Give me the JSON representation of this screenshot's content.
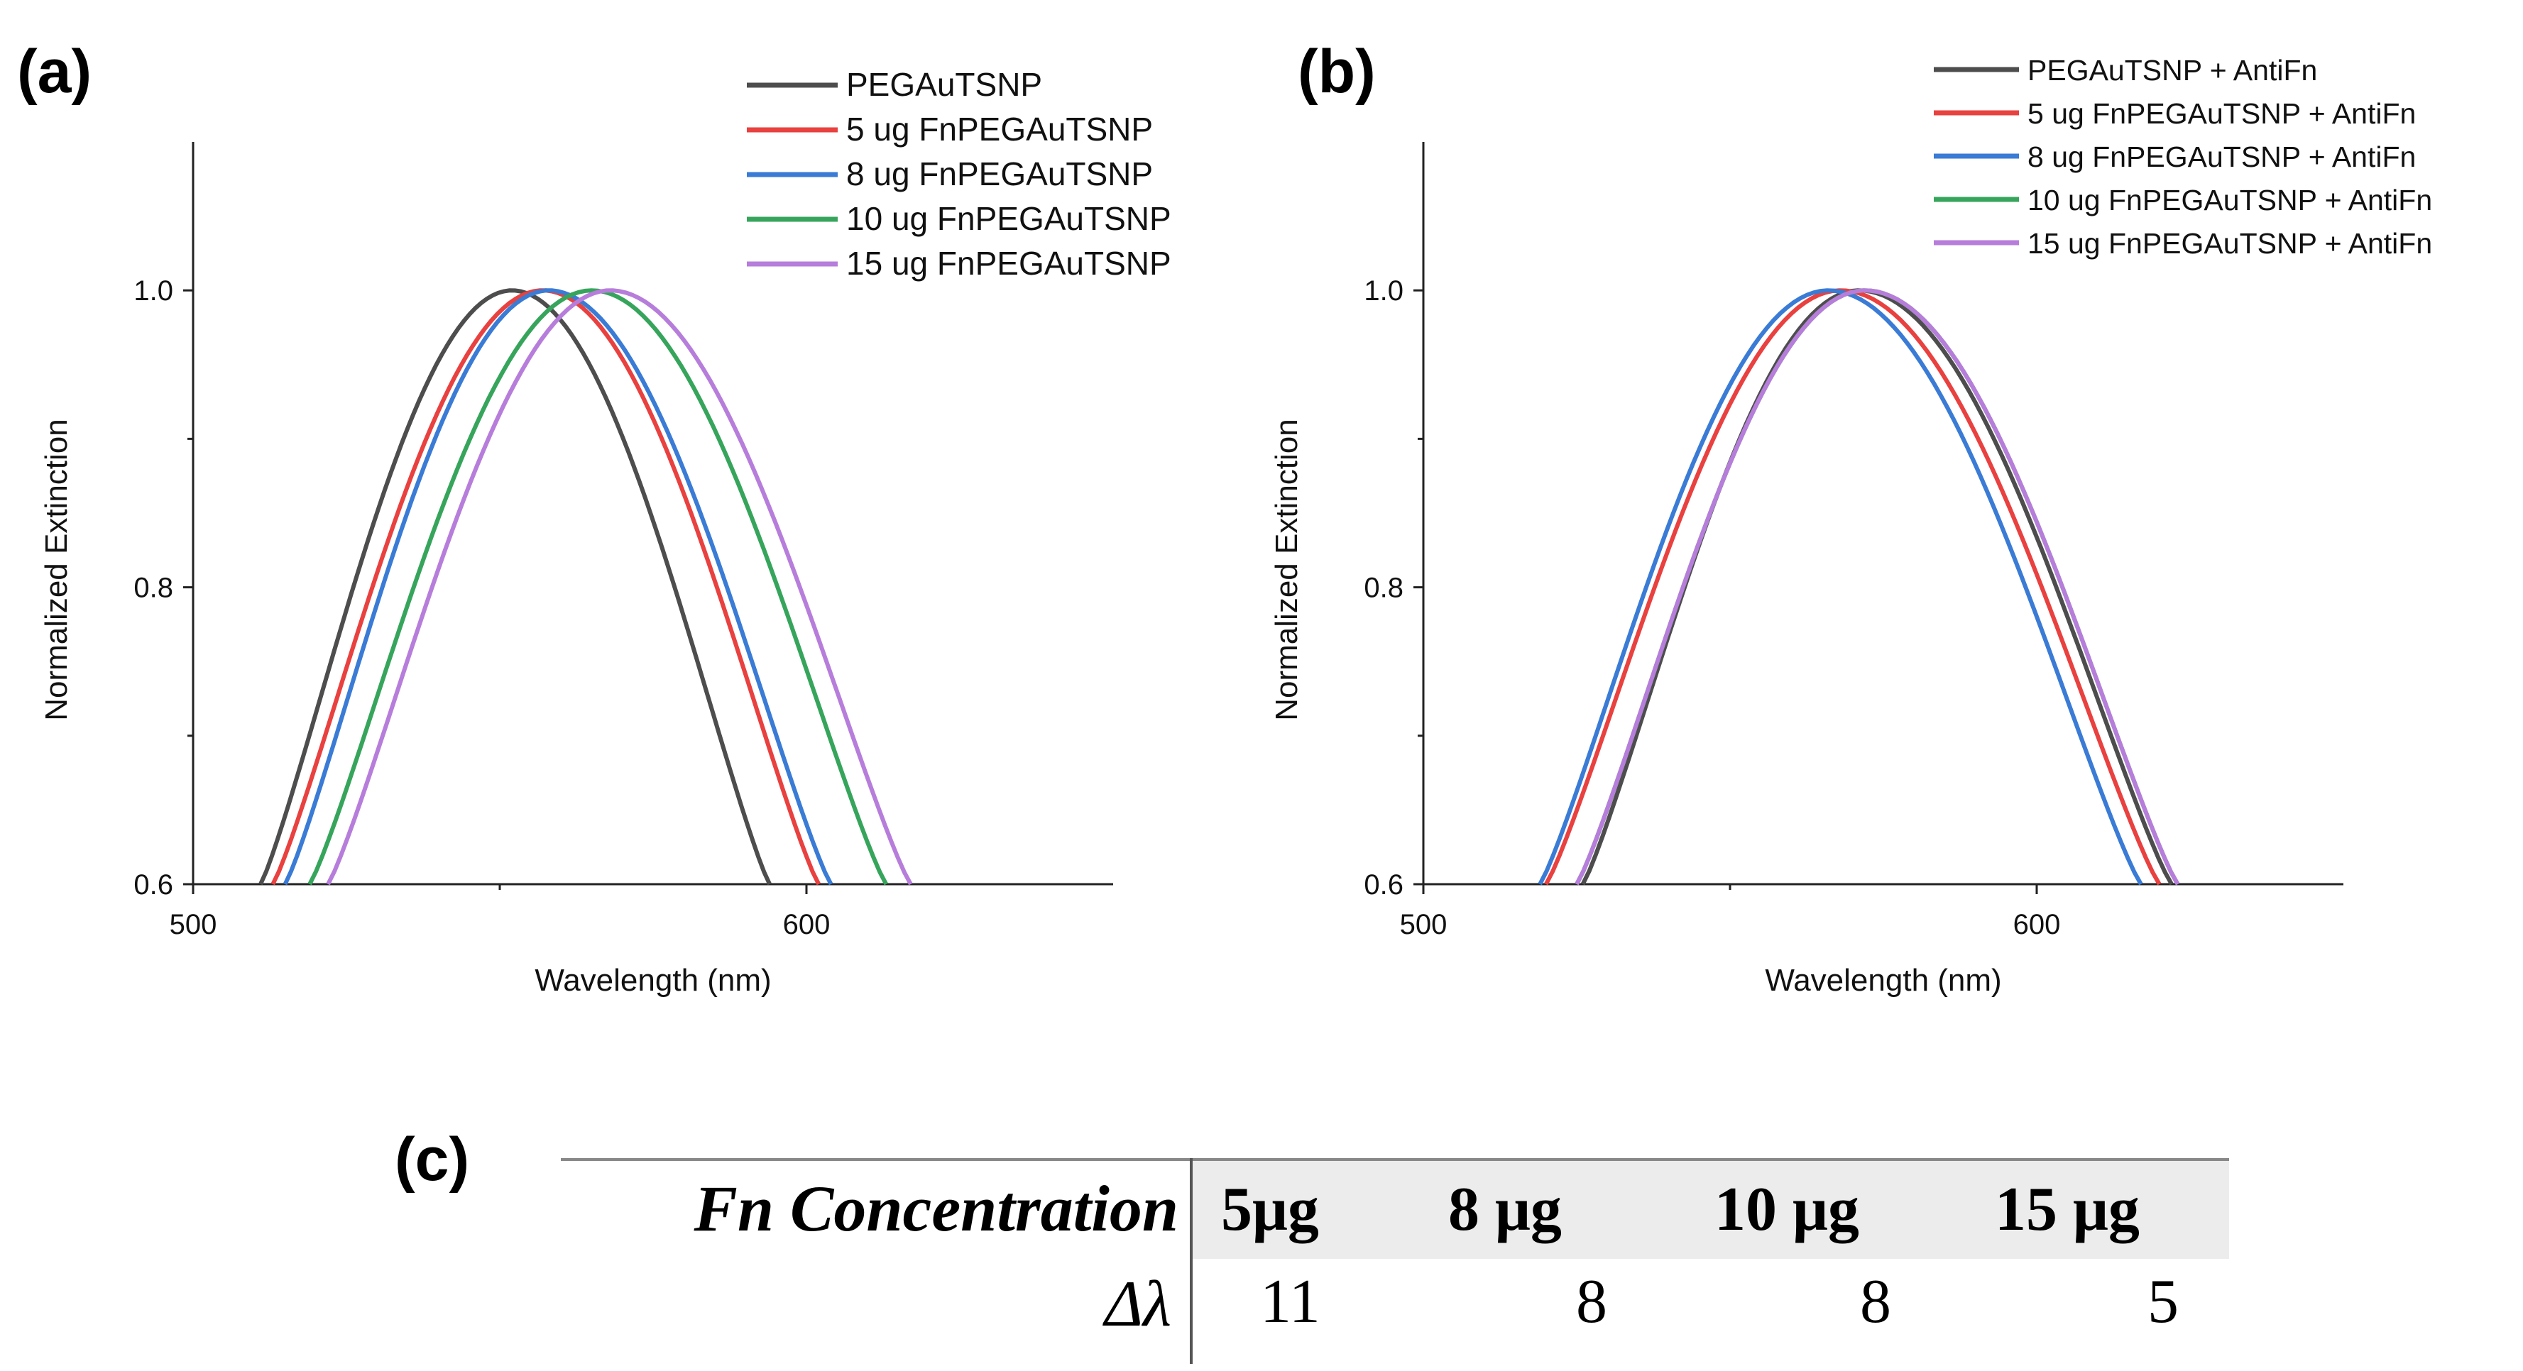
{
  "panel_labels": {
    "a": "(a)",
    "b": "(b)",
    "c": "(c)"
  },
  "chart_data": [
    {
      "type": "line",
      "panel": "(a)",
      "xlabel": "Wavelength (nm)",
      "ylabel": "Normalized Extinction",
      "xlim": [
        500,
        650
      ],
      "ylim": [
        0.6,
        1.1
      ],
      "x_ticks": [
        500,
        600
      ],
      "x_minor_ticks": [
        550
      ],
      "y_ticks": [
        "0.6",
        "0.8",
        "1.0"
      ],
      "y_minor_ticks": [
        0.7,
        0.9
      ],
      "legend_position": "top-right",
      "series": [
        {
          "name": "PEGAuTSNP",
          "color": "#4d4d4d",
          "peak_x": 552,
          "x_at_min": [
            511,
            594
          ],
          "peak_y": 1.0
        },
        {
          "name": "5 ug FnPEGAuTSNP",
          "color": "#e8413f",
          "peak_x": 557,
          "x_at_min": [
            513,
            602
          ],
          "peak_y": 1.0
        },
        {
          "name": "8 ug FnPEGAuTSNP",
          "color": "#3a7bd5",
          "peak_x": 558,
          "x_at_min": [
            515,
            604
          ],
          "peak_y": 1.0
        },
        {
          "name": "10 ug FnPEGAuTSNP",
          "color": "#36a55b",
          "peak_x": 565,
          "x_at_min": [
            519,
            613
          ],
          "peak_y": 1.0
        },
        {
          "name": "15 ug FnPEGAuTSNP",
          "color": "#b77ddb",
          "peak_x": 568,
          "x_at_min": [
            522,
            617
          ],
          "peak_y": 1.0
        }
      ]
    },
    {
      "type": "line",
      "panel": "(b)",
      "xlabel": "Wavelength (nm)",
      "ylabel": "Normalized Extinction",
      "xlim": [
        500,
        650
      ],
      "ylim": [
        0.6,
        1.1
      ],
      "x_ticks": [
        500,
        600
      ],
      "x_minor_ticks": [
        550
      ],
      "y_ticks": [
        "0.6",
        "0.8",
        "1.0"
      ],
      "y_minor_ticks": [
        0.7,
        0.9
      ],
      "legend_position": "top-right",
      "series": [
        {
          "name": "PEGAuTSNP + AntiFn",
          "color": "#4d4d4d",
          "peak_x": 571,
          "x_at_min": [
            526,
            622
          ],
          "peak_y": 1.0
        },
        {
          "name": "5 ug FnPEGAuTSNP + AntiFn",
          "color": "#e8413f",
          "peak_x": 568,
          "x_at_min": [
            520,
            620
          ],
          "peak_y": 1.0
        },
        {
          "name": "8 ug FnPEGAuTSNP + AntiFn",
          "color": "#3a7bd5",
          "peak_x": 566,
          "x_at_min": [
            519,
            617
          ],
          "peak_y": 1.0
        },
        {
          "name": "10 ug FnPEGAuTSNP + AntiFn",
          "color": "#36a55b",
          "peak_x": 572,
          "x_at_min": [
            525,
            623
          ],
          "peak_y": 1.0
        },
        {
          "name": "15 ug FnPEGAuTSNP + AntiFn",
          "color": "#b77ddb",
          "peak_x": 572,
          "x_at_min": [
            525,
            623
          ],
          "peak_y": 1.0
        }
      ]
    },
    {
      "type": "table",
      "panel": "(c)",
      "row_header_1": "Fn Concentration",
      "row_header_2": "Δλ",
      "columns": [
        "5μg",
        "8 μg",
        "10 μg",
        "15 μg"
      ],
      "values": [
        "11",
        "8",
        "8",
        "5"
      ]
    }
  ]
}
